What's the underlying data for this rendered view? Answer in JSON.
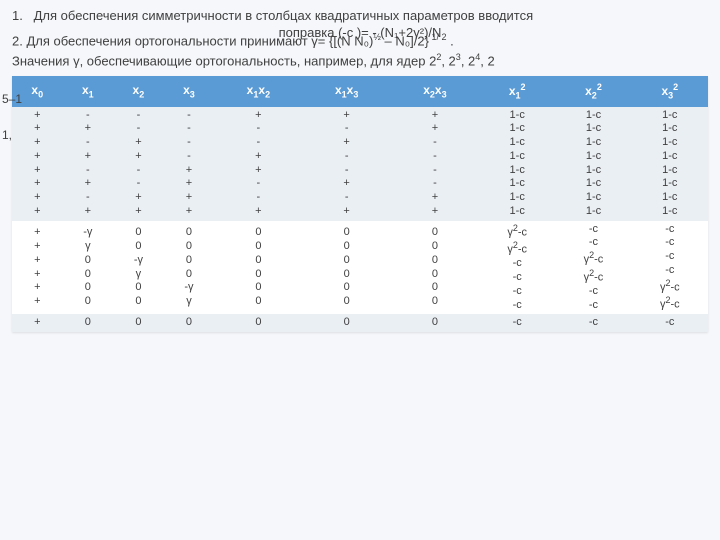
{
  "text": {
    "p1_num": "1.",
    "p1": "Для обеспечения  симметричности в столбцах квадратичных параметров вводится",
    "p1b": "поправка (-c )= - (N₁+2γ²)/N",
    "p2_num": "2.",
    "p2a": "Для обеспечения ортогональности принимают γ= {[(N N₀)",
    "p2b": " – N₀]/2}",
    "p2c": " .",
    "p3a": "Значения γ, обеспечивающие ортогональность, например, для ядер 2",
    "p3b": ",    2",
    "p3c": ",    2",
    "p3d": ",    2",
    "marker_top": "5–1",
    "marker_side": "1,"
  },
  "headers": [
    "x₀",
    "x₁",
    "x₂",
    "x₃",
    "x₁x₂",
    "x₁x₃",
    "x₂x₃",
    "x₁²",
    "x₂²",
    "x₃²"
  ],
  "blockA": {
    "rows0": [
      "+",
      "+",
      "+",
      "+",
      "+",
      "+",
      "+",
      "+"
    ],
    "rows1": [
      "-",
      "+",
      "-",
      "+",
      "-",
      "+",
      "-",
      "+"
    ],
    "rows2": [
      "-",
      "-",
      "+",
      "+",
      "-",
      "-",
      "+",
      "+"
    ],
    "rows3": [
      "-",
      "-",
      "-",
      "-",
      "+",
      "+",
      "+",
      "+"
    ],
    "rows4": [
      "+",
      "-",
      "-",
      "+",
      "+",
      "-",
      "-",
      "+"
    ],
    "rows5": [
      "+",
      "-",
      "+",
      "-",
      "-",
      "+",
      "-",
      "+"
    ],
    "rows6": [
      "+",
      "+",
      "-",
      "-",
      "-",
      "-",
      "+",
      "+"
    ],
    "rows7": [
      "1-c",
      "1-c",
      "1-c",
      "1-c",
      "1-c",
      "1-c",
      "1-c",
      "1-c"
    ],
    "rows8": [
      "1-c",
      "1-c",
      "1-c",
      "1-c",
      "1-c",
      "1-c",
      "1-c",
      "1-c"
    ],
    "rows9": [
      "1-c",
      "1-c",
      "1-c",
      "1-c",
      "1-c",
      "1-c",
      "1-c",
      "1-c"
    ]
  },
  "blockB": {
    "rows0": [
      "+",
      "+",
      "+",
      "+",
      "+",
      "+"
    ],
    "rows1": [
      "-γ",
      "γ",
      "0",
      "0",
      "0",
      "0"
    ],
    "rows2": [
      "0",
      "0",
      "-γ",
      "γ",
      "0",
      "0"
    ],
    "rows3": [
      "0",
      "0",
      "0",
      "0",
      "-γ",
      "γ"
    ],
    "rows4": [
      "0",
      "0",
      "0",
      "0",
      "0",
      "0"
    ],
    "rows5": [
      "0",
      "0",
      "0",
      "0",
      "0",
      "0"
    ],
    "rows6": [
      "0",
      "0",
      "0",
      "0",
      "0",
      "0"
    ],
    "rows7": [
      "γ²-c",
      "γ²-c",
      "-c",
      "-c",
      "-c",
      "-c"
    ],
    "rows8": [
      "-c",
      "-c",
      "γ²-c",
      "γ²-c",
      "-c",
      "-c"
    ],
    "rows9": [
      "-c",
      "-c",
      "-c",
      "-c",
      "γ²-c",
      "γ²-c"
    ]
  },
  "blockC": {
    "rows0": [
      "+"
    ],
    "rows1": [
      "0"
    ],
    "rows2": [
      "0"
    ],
    "rows3": [
      "0"
    ],
    "rows4": [
      "0"
    ],
    "rows5": [
      "0"
    ],
    "rows6": [
      "0"
    ],
    "rows7": [
      "-c"
    ],
    "rows8": [
      "-c"
    ],
    "rows9": [
      "-c"
    ]
  }
}
